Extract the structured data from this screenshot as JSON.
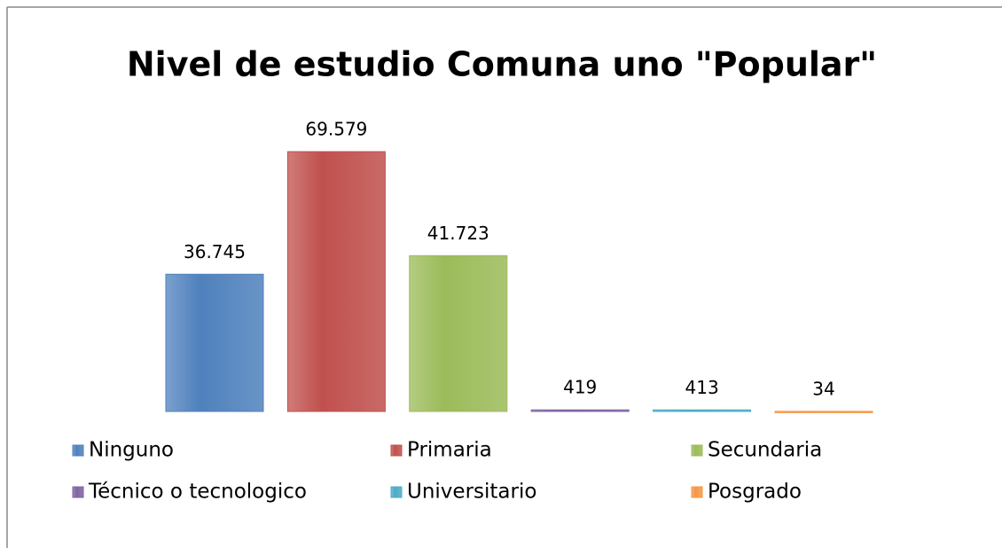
{
  "chart_data": {
    "type": "bar",
    "title": "Nivel de estudio Comuna uno \"Popular\"",
    "categories": [
      "Ninguno",
      "Primaria",
      "Secundaria",
      "Técnico o tecnologico",
      "Universitario",
      "Posgrado"
    ],
    "values": [
      36745,
      69579,
      41723,
      419,
      413,
      34
    ],
    "value_labels": [
      "36.745",
      "69.579",
      "41.723",
      "419",
      "413",
      "34"
    ],
    "colors": [
      "#4f81bd",
      "#c0504d",
      "#9bbb59",
      "#8064a2",
      "#4bacc6",
      "#f79646"
    ],
    "legend": "bottom"
  }
}
